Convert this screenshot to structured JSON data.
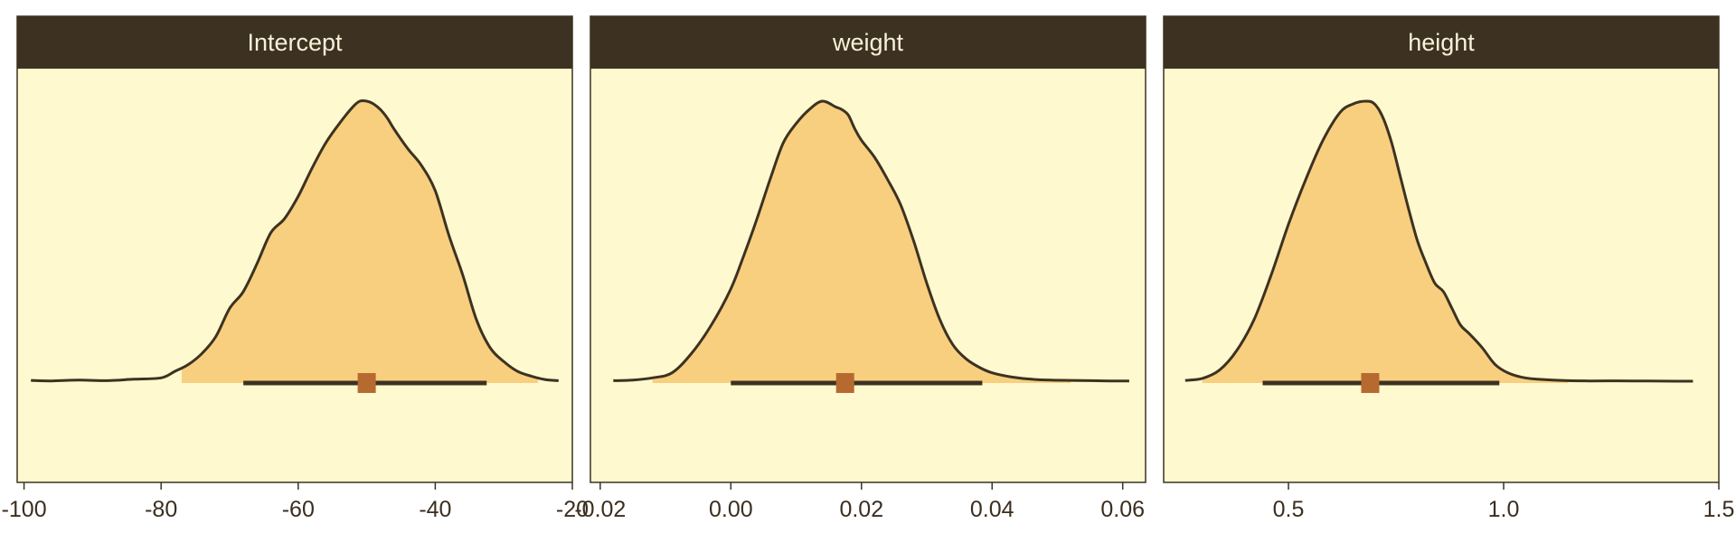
{
  "colors": {
    "panel_bg": "#fef9cf",
    "strip_bg": "#3d3221",
    "strip_text": "#f7f1d8",
    "fill": "#f8cf7f",
    "line": "#3d3221",
    "point": "#b66a30",
    "border": "#3d3221"
  },
  "chart_data": [
    {
      "type": "area",
      "title": "Intercept",
      "xlim": [
        -101,
        -20
      ],
      "x_ticks": [
        -100,
        -80,
        -60,
        -40,
        -20
      ],
      "x_tick_labels": [
        "-100",
        "-80",
        "-60",
        "-40",
        "-20"
      ],
      "density_x": [
        -99,
        -96,
        -92,
        -88,
        -84,
        -80,
        -78,
        -76,
        -74,
        -72,
        -70,
        -68,
        -66,
        -64,
        -62,
        -60,
        -58,
        -56,
        -54,
        -52,
        -51,
        -50,
        -49,
        -48,
        -47,
        -46,
        -44,
        -42,
        -40,
        -38,
        -36,
        -34,
        -32,
        -30,
        -28,
        -26,
        -24,
        -22
      ],
      "density_y": [
        0.003,
        0.001,
        0.004,
        0.002,
        0.007,
        0.012,
        0.035,
        0.06,
        0.1,
        0.16,
        0.26,
        0.32,
        0.42,
        0.53,
        0.58,
        0.66,
        0.76,
        0.85,
        0.92,
        0.98,
        1.0,
        1.0,
        0.99,
        0.97,
        0.94,
        0.9,
        0.83,
        0.77,
        0.68,
        0.52,
        0.38,
        0.22,
        0.12,
        0.07,
        0.035,
        0.018,
        0.006,
        0.002
      ],
      "fill_range": [
        -77,
        -25
      ],
      "point_estimate": -50,
      "interval": [
        -68,
        -32.5
      ]
    },
    {
      "type": "area",
      "title": "weight",
      "xlim": [
        -0.0215,
        0.0635
      ],
      "x_ticks": [
        -0.02,
        0.0,
        0.02,
        0.04,
        0.06
      ],
      "x_tick_labels": [
        "-0.02",
        "0.00",
        "0.02",
        "0.04",
        "0.06"
      ],
      "density_x": [
        -0.018,
        -0.015,
        -0.012,
        -0.009,
        -0.006,
        -0.003,
        0.0,
        0.002,
        0.004,
        0.006,
        0.008,
        0.01,
        0.012,
        0.014,
        0.016,
        0.017,
        0.018,
        0.019,
        0.02,
        0.022,
        0.024,
        0.026,
        0.028,
        0.03,
        0.032,
        0.034,
        0.036,
        0.038,
        0.04,
        0.043,
        0.046,
        0.049,
        0.052,
        0.055,
        0.058,
        0.061
      ],
      "density_y": [
        0.002,
        0.004,
        0.012,
        0.03,
        0.1,
        0.2,
        0.33,
        0.45,
        0.58,
        0.72,
        0.85,
        0.92,
        0.97,
        1.0,
        0.98,
        0.97,
        0.95,
        0.9,
        0.86,
        0.8,
        0.72,
        0.63,
        0.5,
        0.35,
        0.22,
        0.13,
        0.08,
        0.05,
        0.03,
        0.015,
        0.007,
        0.004,
        0.003,
        0.002,
        0.001,
        0.001
      ],
      "fill_range": [
        -0.012,
        0.052
      ],
      "point_estimate": 0.0175,
      "interval": [
        0.0,
        0.0385
      ]
    },
    {
      "type": "area",
      "title": "height",
      "xlim": [
        0.21,
        1.5
      ],
      "x_ticks": [
        0.5,
        1.0,
        1.5
      ],
      "x_tick_labels": [
        "0.5",
        "1.0",
        "1.5"
      ],
      "density_x": [
        0.26,
        0.3,
        0.34,
        0.38,
        0.42,
        0.46,
        0.5,
        0.54,
        0.58,
        0.62,
        0.65,
        0.68,
        0.7,
        0.72,
        0.74,
        0.76,
        0.78,
        0.8,
        0.82,
        0.84,
        0.86,
        0.88,
        0.9,
        0.92,
        0.95,
        0.98,
        1.01,
        1.05,
        1.1,
        1.15,
        1.2,
        1.3,
        1.4,
        1.44
      ],
      "density_y": [
        0.003,
        0.01,
        0.04,
        0.11,
        0.22,
        0.38,
        0.56,
        0.72,
        0.86,
        0.96,
        0.99,
        1.0,
        0.99,
        0.94,
        0.85,
        0.73,
        0.61,
        0.5,
        0.42,
        0.35,
        0.32,
        0.26,
        0.2,
        0.17,
        0.12,
        0.06,
        0.03,
        0.012,
        0.005,
        0.002,
        0.001,
        0.001,
        0.0,
        0.0
      ],
      "fill_range": [
        0.3,
        1.15
      ],
      "point_estimate": 0.69,
      "interval": [
        0.44,
        0.99
      ]
    }
  ]
}
